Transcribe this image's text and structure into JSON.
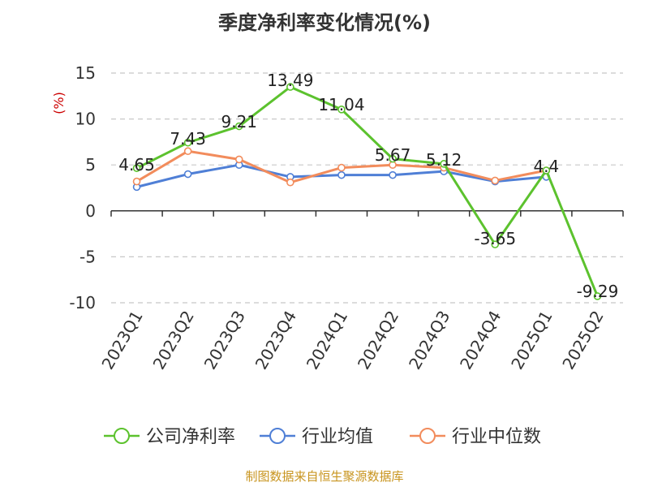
{
  "chart_data": {
    "type": "line",
    "title": "季度净利率变化情况(%)",
    "ylabel": "(%)",
    "categories": [
      "2023Q1",
      "2023Q2",
      "2023Q3",
      "2023Q4",
      "2024Q1",
      "2024Q2",
      "2024Q3",
      "2024Q4",
      "2025Q1",
      "2025Q2"
    ],
    "ylim": [
      -10,
      15
    ],
    "yticks": [
      15,
      10,
      5,
      0,
      -5,
      -10
    ],
    "grid": true,
    "legend_position": "bottom",
    "series": [
      {
        "name": "公司净利率",
        "color": "#5cc22e",
        "values": [
          4.65,
          7.43,
          9.21,
          13.49,
          11.04,
          5.67,
          5.12,
          -3.65,
          4.4,
          -9.29
        ],
        "labels": [
          "4.65",
          "7.43",
          "9.21",
          "13.49",
          "11.04",
          "5.67",
          "5.12",
          "-3.65",
          "4.4",
          "-9.29"
        ]
      },
      {
        "name": "行业均值",
        "color": "#4f7fd6",
        "values": [
          2.6,
          4.0,
          5.0,
          3.7,
          3.9,
          3.9,
          4.3,
          3.2,
          3.7,
          null
        ]
      },
      {
        "name": "行业中位数",
        "color": "#f28c5c",
        "values": [
          3.2,
          6.5,
          5.6,
          3.1,
          4.7,
          5.0,
          4.7,
          3.3,
          4.4,
          null
        ]
      }
    ]
  },
  "source": "制图数据来自恒生聚源数据库"
}
